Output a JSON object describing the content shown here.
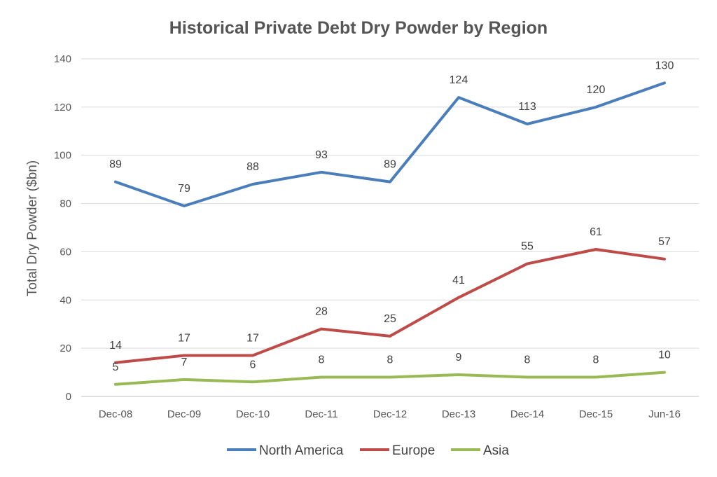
{
  "chart_data": {
    "type": "line",
    "title": "Historical Private Debt Dry Powder by Region",
    "ylabel": "Total Dry Powder ($bn)",
    "xlabel": "",
    "ylim": [
      0,
      140
    ],
    "yticks": [
      0,
      20,
      40,
      60,
      80,
      100,
      120,
      140
    ],
    "categories": [
      "Dec-08",
      "Dec-09",
      "Dec-10",
      "Dec-11",
      "Dec-12",
      "Dec-13",
      "Dec-14",
      "Dec-15",
      "Jun-16"
    ],
    "grid": true,
    "legend_position": "bottom",
    "series": [
      {
        "name": "North America",
        "color": "#4a7ebb",
        "values": [
          89,
          79,
          88,
          93,
          89,
          124,
          113,
          120,
          130
        ]
      },
      {
        "name": "Europe",
        "color": "#be4b48",
        "values": [
          14,
          17,
          17,
          28,
          25,
          41,
          55,
          61,
          57
        ]
      },
      {
        "name": "Asia",
        "color": "#98b954",
        "values": [
          5,
          7,
          6,
          8,
          8,
          9,
          8,
          8,
          10
        ]
      }
    ]
  }
}
